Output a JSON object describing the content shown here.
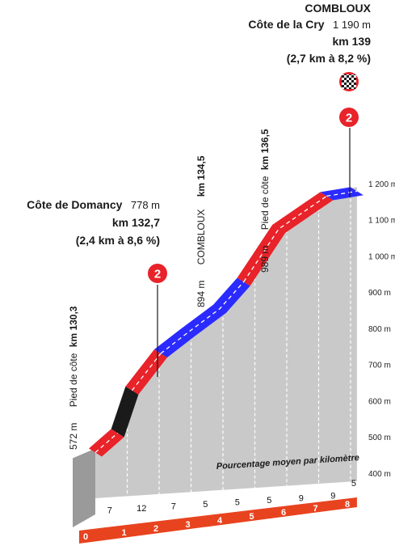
{
  "chart_data": {
    "type": "area",
    "title": "",
    "xlabel": "",
    "ylabel": "",
    "x_unit": "km",
    "y_unit": "m",
    "xlim": [
      0,
      8.3
    ],
    "ylim": [
      400,
      1200
    ],
    "y_ticks": [
      400,
      500,
      600,
      700,
      800,
      900,
      1000,
      1100,
      1200
    ],
    "y_tick_labels": [
      "400 m",
      "500 m",
      "600 m",
      "700 m",
      "800 m",
      "900 m",
      "1 000 m",
      "1 100 m",
      "1 200 m"
    ],
    "x_ticks": [
      0,
      1,
      2,
      3,
      4,
      5,
      6,
      7,
      8
    ],
    "x_tick_labels": [
      "0",
      "1",
      "2",
      "3",
      "4",
      "5",
      "6",
      "7",
      "8"
    ],
    "grid": "vertical-dashed",
    "profile": [
      {
        "x": 0.0,
        "y": 515
      },
      {
        "x": 0.7,
        "y": 565
      },
      {
        "x": 1.15,
        "y": 680
      },
      {
        "x": 2.05,
        "y": 777
      },
      {
        "x": 2.9,
        "y": 830
      },
      {
        "x": 3.9,
        "y": 890
      },
      {
        "x": 4.65,
        "y": 960
      },
      {
        "x": 5.75,
        "y": 1100
      },
      {
        "x": 7.25,
        "y": 1182
      },
      {
        "x": 8.2,
        "y": 1190
      }
    ],
    "segments": [
      {
        "from": 0.0,
        "to": 0.7,
        "color": "#e8232a",
        "dashed": true
      },
      {
        "from": 0.7,
        "to": 1.15,
        "color": "#1a1a1a",
        "dashed": false
      },
      {
        "from": 1.15,
        "to": 2.05,
        "color": "#e8232a",
        "dashed": true
      },
      {
        "from": 2.05,
        "to": 4.65,
        "color": "#2b2bff",
        "dashed": true
      },
      {
        "from": 4.65,
        "to": 7.25,
        "color": "#e8232a",
        "dashed": true
      },
      {
        "from": 7.25,
        "to": 8.2,
        "color": "#2b2bff",
        "dashed": true
      }
    ],
    "km_gradients": {
      "label": "Pourcentage moyen par kilomètre",
      "values": [
        "7",
        "12",
        "7",
        "5",
        "5",
        "5",
        "9",
        "9",
        "5"
      ]
    },
    "annotations": [
      {
        "lines": [
          "572 m",
          "Pied de côte km 130,3"
        ],
        "x": 0.0
      },
      {
        "lines": [
          "894 m",
          "COMBLOUX km 134,5"
        ],
        "x": 3.0
      },
      {
        "lines": [
          "989 m",
          "Pied de côte km 136,5"
        ],
        "x": 4.9
      }
    ],
    "climbs": [
      {
        "category": "2",
        "x": 1.8,
        "name": "Côte de Domancy",
        "altitude": "778 m",
        "km": "km 132,7",
        "stats": "(2,4 km à 8,6 %)"
      },
      {
        "category": "2",
        "x": 7.6,
        "town": "COMBLOUX",
        "name": "Côte de la Cry",
        "altitude": "1 190 m",
        "km": "km 139",
        "stats": "(2,7 km à 8,2 %)",
        "finish_flag": true
      }
    ]
  },
  "labels": {
    "domancy_name": "Côte de Domancy",
    "domancy_alt": "778 m",
    "domancy_km": "km 132,7",
    "domancy_stats": "(2,4 km à 8,6 %)",
    "cry_town": "COMBLOUX",
    "cry_name": "Côte de la Cry",
    "cry_alt": "1 190 m",
    "cry_km": "km 139",
    "cry_stats": "(2,7 km à 8,2 %)",
    "pied1_alt": "572 m",
    "pied1_text": "Pied de côte",
    "pied1_km": "km 130,3",
    "combloux_alt": "894 m",
    "combloux_text": "COMBLOUX",
    "combloux_km": "km 134,5",
    "pied2_alt": "989 m",
    "pied2_text": "Pied de côte",
    "pied2_km": "km 136,5",
    "cat_badge": "2"
  },
  "colors": {
    "red": "#e8232a",
    "blue": "#2b2bff",
    "black": "#1a1a1a",
    "ground": "#c9c9c9",
    "side": "#9a9a9a",
    "band": "#e8431f"
  }
}
